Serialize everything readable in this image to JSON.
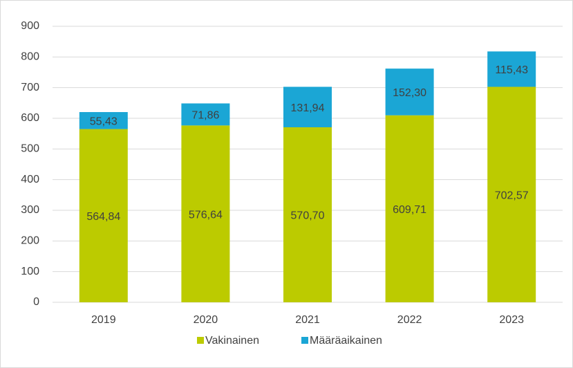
{
  "chart_data": {
    "type": "stacked_bar",
    "categories": [
      "2019",
      "2020",
      "2021",
      "2022",
      "2023"
    ],
    "series": [
      {
        "name": "Vakinainen",
        "color": "#bccb00",
        "values": [
          564.84,
          576.64,
          570.7,
          609.71,
          702.57
        ],
        "value_labels": [
          "564,84",
          "576,64",
          "570,70",
          "609,71",
          "702,57"
        ]
      },
      {
        "name": "Määräaikainen",
        "color": "#1ba6d5",
        "values": [
          55.43,
          71.86,
          131.94,
          152.3,
          115.43
        ],
        "value_labels": [
          "55,43",
          "71,86",
          "131,94",
          "152,30",
          "115,43"
        ]
      }
    ],
    "ylim": [
      0,
      900
    ],
    "yticks": [
      0,
      100,
      200,
      300,
      400,
      500,
      600,
      700,
      800,
      900
    ],
    "grid": true,
    "legend": "bottom"
  }
}
